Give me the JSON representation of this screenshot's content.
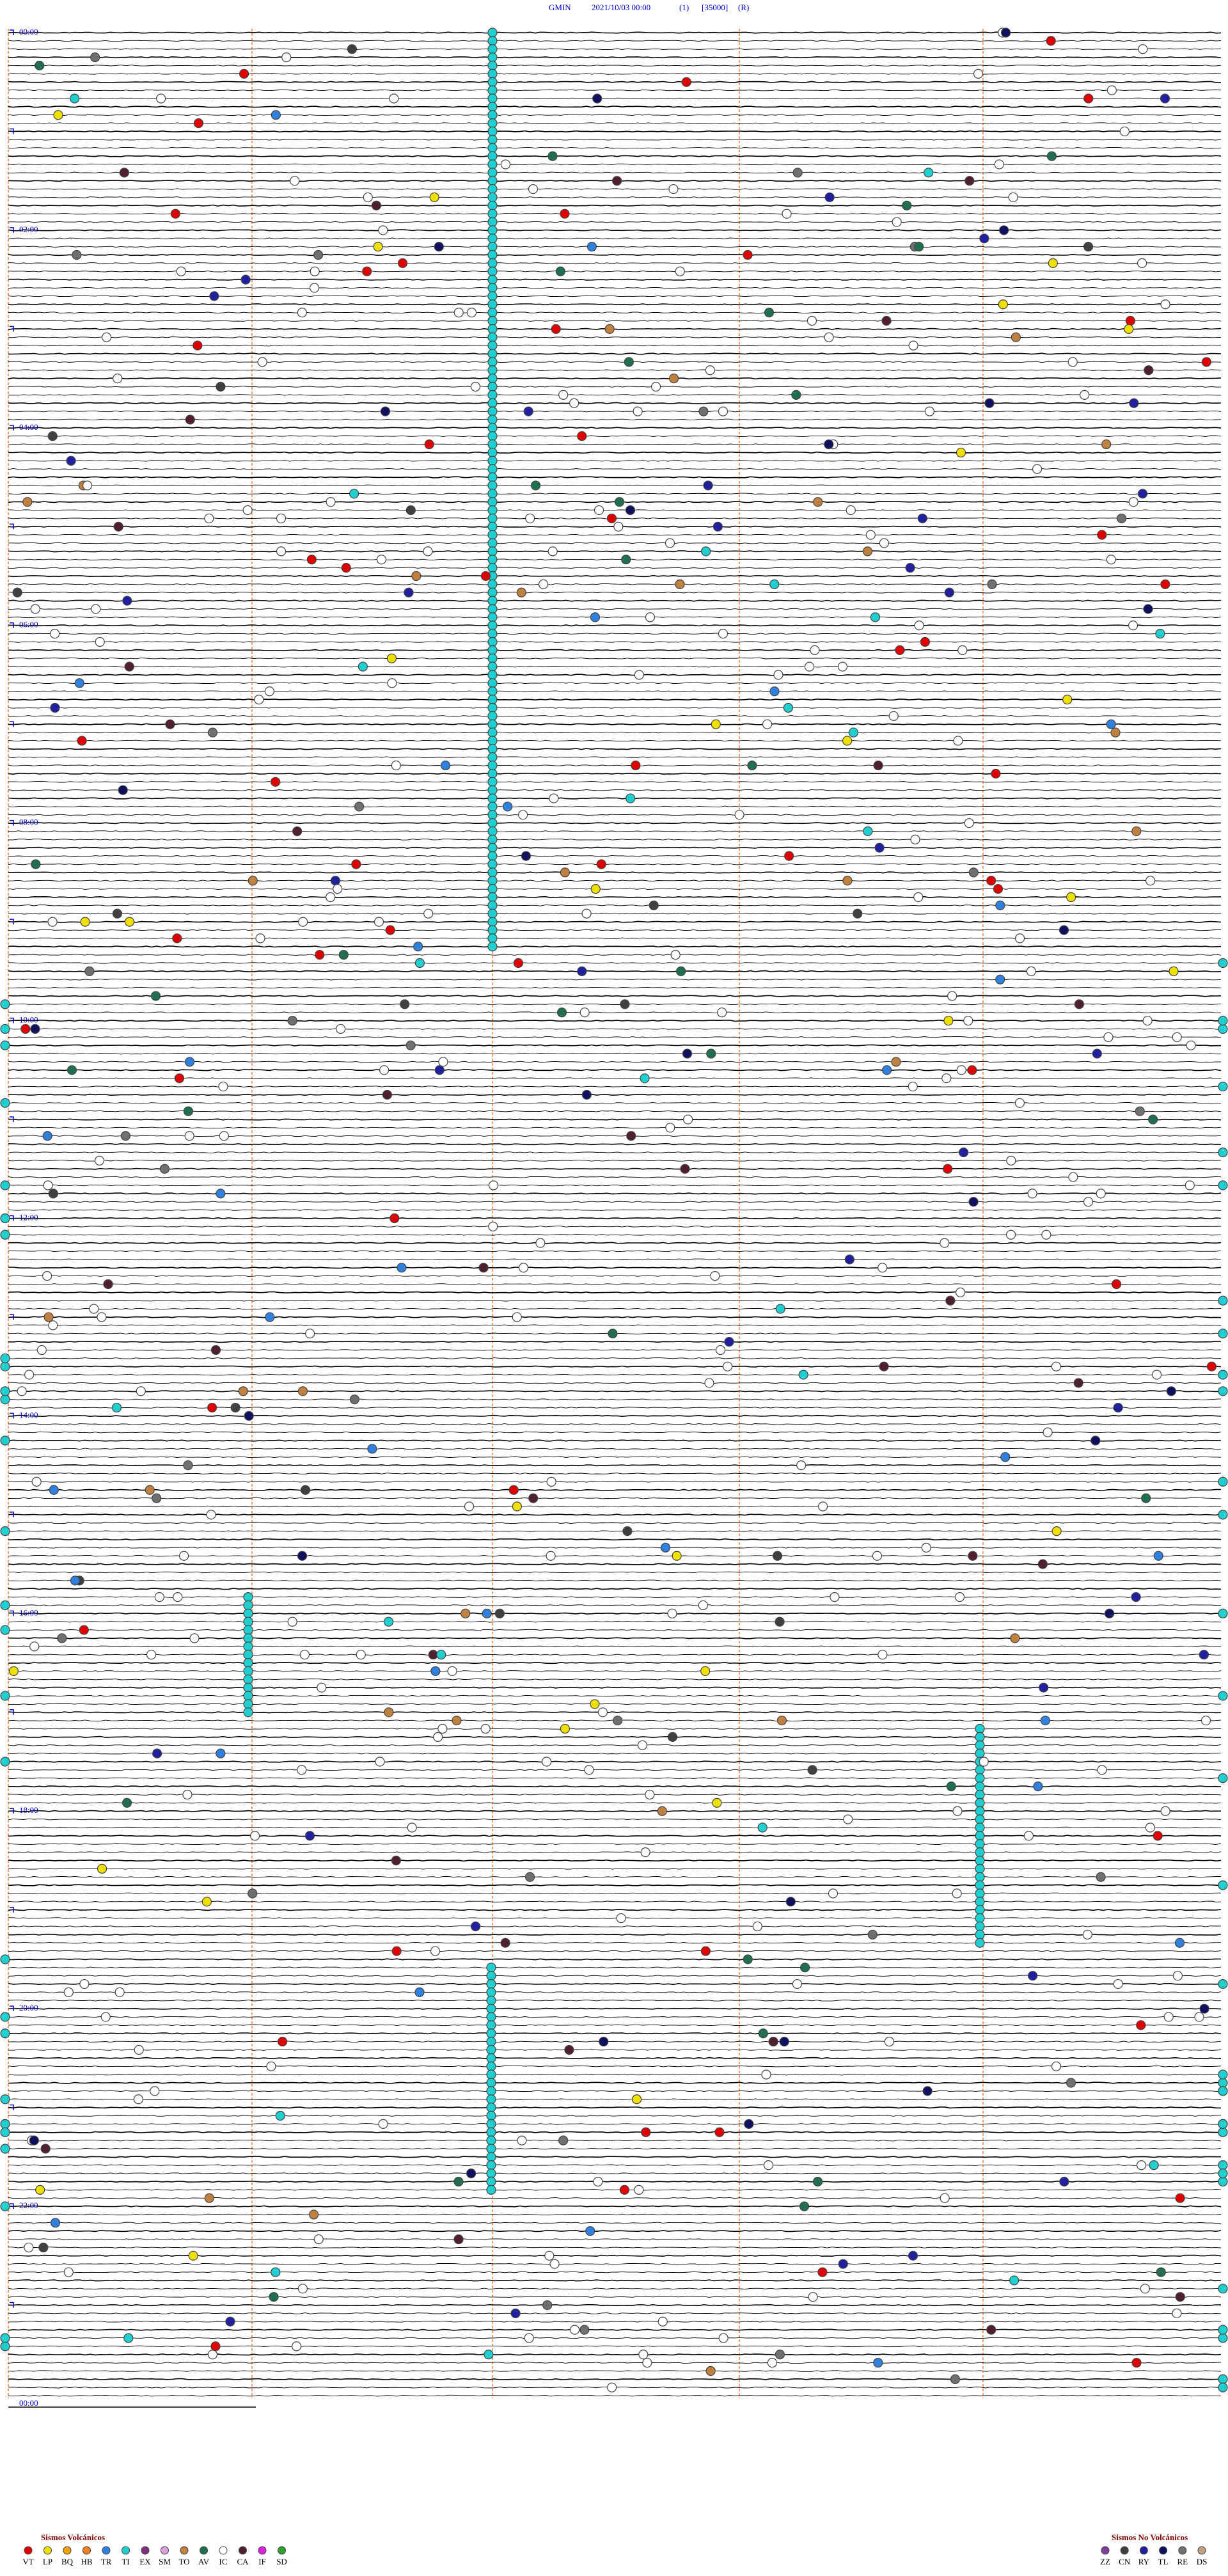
{
  "header": {
    "station": "GMIN",
    "datetime": "2021/10/03 00:00",
    "channel": "(1)",
    "scale": "[35000]",
    "mode": "(R)"
  },
  "hour_labels": [
    "00:00",
    "02:00",
    "04:00",
    "06:00",
    "08:00",
    "10:00",
    "12:00",
    "14:00",
    "16:00",
    "18:00",
    "20:00",
    "22:00",
    "00:00"
  ],
  "legend_volcanic": {
    "title": "Sismos Volcánicos",
    "items": [
      {
        "code": "VT",
        "color": "#e00000"
      },
      {
        "code": "LP",
        "color": "#f0e000"
      },
      {
        "code": "BQ",
        "color": "#f0a000"
      },
      {
        "code": "HB",
        "color": "#f08020"
      },
      {
        "code": "TR",
        "color": "#3080e0"
      },
      {
        "code": "TI",
        "color": "#20d0d0"
      },
      {
        "code": "EX",
        "color": "#803080"
      },
      {
        "code": "SM",
        "color": "#e0a0e0"
      },
      {
        "code": "TO",
        "color": "#c08040"
      },
      {
        "code": "AV",
        "color": "#207050"
      },
      {
        "code": "IC",
        "color": "#ffffff"
      },
      {
        "code": "CA",
        "color": "#502030"
      },
      {
        "code": "IF",
        "color": "#e020e0"
      },
      {
        "code": "SD",
        "color": "#30a030"
      }
    ]
  },
  "legend_non_volcanic": {
    "title": "Sismos No Volcánicos",
    "items": [
      {
        "code": "ZZ",
        "color": "#8040a0"
      },
      {
        "code": "CN",
        "color": "#404040"
      },
      {
        "code": "RY",
        "color": "#2020a0"
      },
      {
        "code": "TL",
        "color": "#101060"
      },
      {
        "code": "RE",
        "color": "#707070"
      },
      {
        "code": "DS",
        "color": "#c0a080"
      }
    ]
  }
}
